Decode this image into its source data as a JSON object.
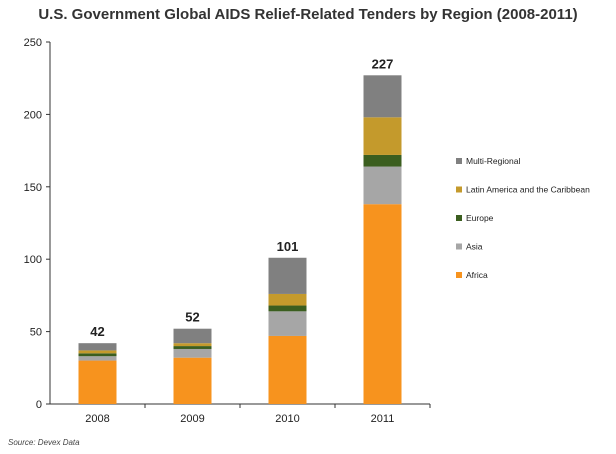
{
  "chart_data": {
    "type": "bar",
    "stacked": true,
    "title": "U.S. Government Global AIDS Relief-Related Tenders by Region (2008-2011)",
    "categories": [
      "2008",
      "2009",
      "2010",
      "2011"
    ],
    "totals": [
      42,
      52,
      101,
      227
    ],
    "ylim": [
      0,
      250
    ],
    "yticks": [
      0,
      50,
      100,
      150,
      200,
      250
    ],
    "grid": false,
    "legend_position": "right",
    "series": [
      {
        "name": "Africa",
        "color": "#f7931e",
        "values": [
          30,
          32,
          47,
          138
        ]
      },
      {
        "name": "Asia",
        "color": "#a6a6a6",
        "values": [
          3,
          6,
          17,
          26
        ]
      },
      {
        "name": "Europe",
        "color": "#3b5e1f",
        "values": [
          2,
          2,
          4,
          8
        ]
      },
      {
        "name": "Latin America and the Caribbean",
        "color": "#c49a2c",
        "values": [
          2,
          2,
          8,
          26
        ]
      },
      {
        "name": "Multi-Regional",
        "color": "#808080",
        "values": [
          5,
          10,
          25,
          29
        ]
      }
    ],
    "source": "Source: Devex Data"
  }
}
